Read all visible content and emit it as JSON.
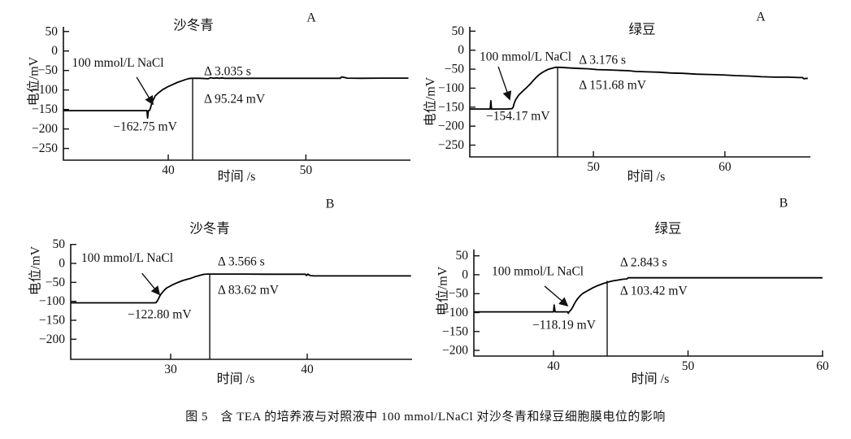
{
  "figure": {
    "caption": "图 5　含 TEA 的培养液与对照液中 100 mmol/LNaCl 对沙冬青和绿豆细胞膜电位的影响"
  },
  "chart_data": [
    {
      "id": "panel-A-shadongqing",
      "type": "line",
      "title": "沙冬青",
      "panel_label": "A",
      "xlabel": "时间 /s",
      "ylabel": "电位/mV",
      "xlim": [
        32.38,
        57.6
      ],
      "ylim": [
        -280,
        62
      ],
      "x_ticks": [
        40,
        50
      ],
      "y_ticks": [
        50,
        0,
        -50,
        -100,
        -150,
        -200,
        -250
      ],
      "grid": false,
      "series": [
        {
          "name": "membrane-potential",
          "points": [
            [
              32.4,
              -153
            ],
            [
              34,
              -153
            ],
            [
              36,
              -153
            ],
            [
              38.35,
              -153
            ],
            [
              38.45,
              -153
            ],
            [
              38.5,
              -172
            ],
            [
              38.55,
              -153
            ],
            [
              38.65,
              -152
            ],
            [
              38.7,
              -147
            ],
            [
              38.78,
              -137
            ],
            [
              38.82,
              -131
            ],
            [
              38.9,
              -126
            ],
            [
              39.0,
              -119
            ],
            [
              39.05,
              -115
            ],
            [
              39.15,
              -112
            ],
            [
              39.3,
              -107
            ],
            [
              39.45,
              -103
            ],
            [
              39.6,
              -99
            ],
            [
              39.8,
              -95
            ],
            [
              40.0,
              -91
            ],
            [
              40.2,
              -88
            ],
            [
              40.45,
              -84
            ],
            [
              40.7,
              -80
            ],
            [
              40.95,
              -77
            ],
            [
              41.2,
              -74
            ],
            [
              41.45,
              -71
            ],
            [
              41.65,
              -70
            ],
            [
              41.9,
              -70
            ],
            [
              42.3,
              -70
            ],
            [
              42.9,
              -71
            ],
            [
              43.1,
              -68.5
            ],
            [
              43.3,
              -70
            ],
            [
              43.5,
              -69
            ],
            [
              43.7,
              -70
            ],
            [
              43.9,
              -69
            ],
            [
              44.1,
              -70
            ],
            [
              45,
              -70
            ],
            [
              47,
              -70
            ],
            [
              49,
              -70
            ],
            [
              51,
              -70
            ],
            [
              52.5,
              -70
            ],
            [
              52.6,
              -66.5
            ],
            [
              52.8,
              -68
            ],
            [
              53.0,
              -69.5
            ],
            [
              54,
              -70
            ],
            [
              55.5,
              -69.5
            ],
            [
              57.45,
              -69.5
            ]
          ]
        }
      ],
      "marker": {
        "time": 41.77,
        "to_mV": -70
      },
      "annotations": [
        {
          "kind": "text",
          "text": "100 mmol/L NaCl",
          "t": 33.0,
          "mV": -31,
          "anchor": "start"
        },
        {
          "kind": "text",
          "text": "Δ 3.035 s",
          "t": 42.6,
          "mV": -53,
          "anchor": "start"
        },
        {
          "kind": "text",
          "text": "Δ 95.24 mV",
          "t": 42.6,
          "mV": -124,
          "anchor": "start"
        },
        {
          "kind": "text",
          "text": "−162.75 mV",
          "t": 36.0,
          "mV": -194,
          "anchor": "start"
        },
        {
          "kind": "arrow",
          "from": [
            37.7,
            -67
          ],
          "to": [
            38.88,
            -136
          ]
        }
      ]
    },
    {
      "id": "panel-A-lvdou",
      "type": "line",
      "title": "绿豆",
      "panel_label": "A",
      "xlabel": "时间 /s",
      "ylabel": "电位/mV",
      "xlim": [
        40.6,
        66.5
      ],
      "ylim": [
        -281,
        61.5
      ],
      "x_ticks": [
        50,
        60
      ],
      "y_ticks": [
        50,
        0,
        -50,
        -100,
        -150,
        -200,
        -250
      ],
      "grid": false,
      "series": [
        {
          "name": "membrane-potential",
          "points": [
            [
              40.6,
              -155
            ],
            [
              41.2,
              -155
            ],
            [
              42.15,
              -155
            ],
            [
              42.2,
              -133
            ],
            [
              42.25,
              -155
            ],
            [
              42.8,
              -155
            ],
            [
              43.4,
              -155
            ],
            [
              43.8,
              -154
            ],
            [
              43.9,
              -150
            ],
            [
              43.95,
              -143
            ],
            [
              44.05,
              -133
            ],
            [
              44.15,
              -127
            ],
            [
              44.25,
              -122
            ],
            [
              44.35,
              -117
            ],
            [
              44.5,
              -112
            ],
            [
              44.65,
              -107
            ],
            [
              44.75,
              -104
            ],
            [
              44.9,
              -99
            ],
            [
              45.05,
              -94
            ],
            [
              45.2,
              -89
            ],
            [
              45.35,
              -83
            ],
            [
              45.5,
              -77
            ],
            [
              45.7,
              -70
            ],
            [
              45.9,
              -64
            ],
            [
              46.1,
              -59
            ],
            [
              46.35,
              -54
            ],
            [
              46.6,
              -50
            ],
            [
              46.9,
              -47
            ],
            [
              47.15,
              -45
            ],
            [
              47.45,
              -45
            ],
            [
              47.8,
              -46
            ],
            [
              48.3,
              -47
            ],
            [
              48.9,
              -48
            ],
            [
              49.6,
              -49
            ],
            [
              50.3,
              -51
            ],
            [
              51.1,
              -52
            ],
            [
              51.9,
              -53
            ],
            [
              52.7,
              -54
            ],
            [
              53.2,
              -56
            ],
            [
              54.1,
              -57
            ],
            [
              55.0,
              -58
            ],
            [
              55.9,
              -60
            ],
            [
              56.8,
              -61
            ],
            [
              57.8,
              -63
            ],
            [
              58.8,
              -64
            ],
            [
              59.8,
              -65
            ],
            [
              60.8,
              -67
            ],
            [
              61.8,
              -68
            ],
            [
              62.8,
              -70
            ],
            [
              63.8,
              -71
            ],
            [
              64.8,
              -71
            ],
            [
              65.6,
              -72
            ],
            [
              65.9,
              -72
            ],
            [
              66.0,
              -75
            ],
            [
              66.3,
              -74
            ]
          ]
        }
      ],
      "marker": {
        "time": 47.28,
        "to_mV": -45
      },
      "annotations": [
        {
          "kind": "text",
          "text": "100 mmol/L NaCl",
          "t": 41.34,
          "mV": -18,
          "anchor": "start"
        },
        {
          "kind": "text",
          "text": "Δ 3.176 s",
          "t": 48.9,
          "mV": -26,
          "anchor": "start"
        },
        {
          "kind": "text",
          "text": "Δ 151.68 mV",
          "t": 48.9,
          "mV": -93,
          "anchor": "start"
        },
        {
          "kind": "text",
          "text": "−154.17 mV",
          "t": 41.84,
          "mV": -174,
          "anchor": "start"
        },
        {
          "kind": "arrow",
          "from": [
            42.77,
            -43.5
          ],
          "to": [
            43.63,
            -129
          ]
        }
      ]
    },
    {
      "id": "panel-B-shadongqing",
      "type": "line",
      "title": "沙冬青",
      "panel_label": "B",
      "xlabel": "时间 /s",
      "ylabel": "电位/mV",
      "xlim": [
        22.68,
        47.68
      ],
      "ylim": [
        -253,
        51.5
      ],
      "x_ticks": [
        30,
        40
      ],
      "y_ticks": [
        50,
        0,
        -50,
        -100,
        -150,
        -200
      ],
      "grid": false,
      "series": [
        {
          "name": "membrane-potential",
          "points": [
            [
              22.7,
              -104
            ],
            [
              24,
              -104
            ],
            [
              26,
              -104
            ],
            [
              28.85,
              -104
            ],
            [
              28.95,
              -103
            ],
            [
              29.05,
              -97
            ],
            [
              29.15,
              -90
            ],
            [
              29.25,
              -83
            ],
            [
              29.4,
              -76
            ],
            [
              29.55,
              -70
            ],
            [
              29.7,
              -65
            ],
            [
              29.9,
              -61
            ],
            [
              30.1,
              -57
            ],
            [
              30.35,
              -53
            ],
            [
              30.6,
              -49
            ],
            [
              30.9,
              -45
            ],
            [
              31.2,
              -42
            ],
            [
              31.5,
              -39
            ],
            [
              31.8,
              -35
            ],
            [
              32.1,
              -32
            ],
            [
              32.4,
              -29
            ],
            [
              32.7,
              -28
            ],
            [
              33.5,
              -28
            ],
            [
              35,
              -28
            ],
            [
              37,
              -28.5
            ],
            [
              39,
              -28.5
            ],
            [
              39.85,
              -28.5
            ],
            [
              39.95,
              -32
            ],
            [
              40.05,
              -28
            ],
            [
              40.2,
              -32
            ],
            [
              40.5,
              -33
            ],
            [
              42,
              -33
            ],
            [
              44,
              -33
            ],
            [
              46,
              -33
            ],
            [
              47.6,
              -33
            ]
          ]
        }
      ],
      "marker": {
        "time": 32.86,
        "to_mV": -28
      },
      "annotations": [
        {
          "kind": "text",
          "text": "100 mmol/L NaCl",
          "t": 23.45,
          "mV": 14,
          "anchor": "start"
        },
        {
          "kind": "text",
          "text": "Δ 3.566 s",
          "t": 33.45,
          "mV": 4,
          "anchor": "start"
        },
        {
          "kind": "text",
          "text": "Δ 83.62 mV",
          "t": 33.45,
          "mV": -71,
          "anchor": "start"
        },
        {
          "kind": "text",
          "text": "−122.80 mV",
          "t": 26.85,
          "mV": -135,
          "anchor": "start"
        },
        {
          "kind": "arrow",
          "from": [
            27.9,
            -26
          ],
          "to": [
            29.17,
            -81.5
          ]
        }
      ]
    },
    {
      "id": "panel-B-lvdou",
      "type": "line",
      "title": "绿豆",
      "panel_label": "B",
      "xlabel": "时间 /s",
      "ylabel": "电位/mV",
      "xlim": [
        34.08,
        60.06
      ],
      "ylim": [
        -215,
        66.5
      ],
      "x_ticks": [
        40,
        50,
        60
      ],
      "y_ticks": [
        50,
        0,
        -50,
        -100,
        -150,
        -200
      ],
      "grid": false,
      "series": [
        {
          "name": "membrane-potential",
          "points": [
            [
              34.1,
              -98
            ],
            [
              35,
              -98
            ],
            [
              37,
              -98
            ],
            [
              39.95,
              -98
            ],
            [
              40.0,
              -98
            ],
            [
              40.05,
              -80
            ],
            [
              40.12,
              -98
            ],
            [
              40.8,
              -98
            ],
            [
              41.05,
              -98
            ],
            [
              41.1,
              -102
            ],
            [
              41.18,
              -97
            ],
            [
              41.3,
              -93
            ],
            [
              41.42,
              -86
            ],
            [
              41.55,
              -77
            ],
            [
              41.7,
              -68
            ],
            [
              41.85,
              -61
            ],
            [
              42.0,
              -55
            ],
            [
              42.2,
              -49
            ],
            [
              42.45,
              -44
            ],
            [
              42.7,
              -39
            ],
            [
              42.95,
              -34
            ],
            [
              43.2,
              -30
            ],
            [
              43.5,
              -26
            ],
            [
              43.8,
              -22
            ],
            [
              44.1,
              -19
            ],
            [
              44.45,
              -16
            ],
            [
              44.8,
              -14
            ],
            [
              45.15,
              -12
            ],
            [
              45.45,
              -11
            ],
            [
              45.55,
              -8
            ],
            [
              46.5,
              -8
            ],
            [
              48,
              -8
            ],
            [
              50,
              -8
            ],
            [
              52,
              -8
            ],
            [
              54,
              -8
            ],
            [
              56,
              -8
            ],
            [
              58,
              -8
            ],
            [
              60.0,
              -8
            ]
          ]
        }
      ],
      "marker": {
        "time": 43.99,
        "to_mV": -16
      },
      "annotations": [
        {
          "kind": "text",
          "text": "100 mmol/L NaCl",
          "t": 35.41,
          "mV": 9,
          "anchor": "start"
        },
        {
          "kind": "text",
          "text": "Δ 2.843 s",
          "t": 44.95,
          "mV": 32,
          "anchor": "start"
        },
        {
          "kind": "text",
          "text": "Δ 103.42 mV",
          "t": 44.95,
          "mV": -43,
          "anchor": "start"
        },
        {
          "kind": "text",
          "text": "−118.19 mV",
          "t": 38.43,
          "mV": -133,
          "anchor": "start"
        },
        {
          "kind": "arrow",
          "from": [
            39.34,
            -30
          ],
          "to": [
            41.03,
            -81.5
          ]
        }
      ]
    }
  ]
}
